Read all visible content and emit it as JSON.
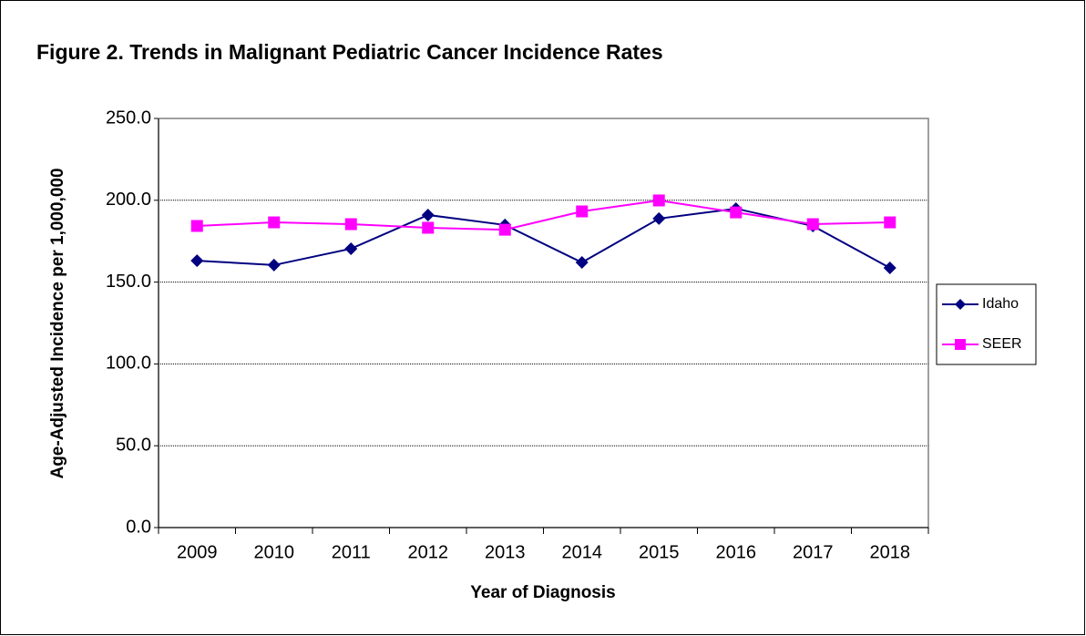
{
  "chart_data": {
    "type": "line",
    "title": "Figure 2. Trends in Malignant Pediatric Cancer Incidence Rates",
    "x_label": "Year of Diagnosis",
    "y_label": "Age-Adjusted Incidence per 1,000,000",
    "categories": [
      "2009",
      "2010",
      "2011",
      "2012",
      "2013",
      "2014",
      "2015",
      "2016",
      "2017",
      "2018"
    ],
    "series": [
      {
        "name": "Idaho",
        "color": "#000080",
        "marker": "diamond",
        "values": [
          163.1,
          160.4,
          170.4,
          191.0,
          184.9,
          162.0,
          188.8,
          194.9,
          184.3,
          158.7
        ]
      },
      {
        "name": "SEER",
        "color": "#ff00ff",
        "marker": "square",
        "values": [
          184.3,
          186.5,
          185.4,
          183.2,
          182.0,
          193.2,
          199.9,
          192.6,
          185.4,
          186.5
        ]
      }
    ],
    "ylim": [
      0,
      250
    ],
    "yticks": [
      {
        "value": 0,
        "label": "0.0"
      },
      {
        "value": 50,
        "label": "50.0"
      },
      {
        "value": 100,
        "label": "100.0"
      },
      {
        "value": 150,
        "label": "150.0"
      },
      {
        "value": 200,
        "label": "200.0"
      },
      {
        "value": 250,
        "label": "250.0"
      }
    ],
    "grid": true,
    "legend": "right"
  }
}
